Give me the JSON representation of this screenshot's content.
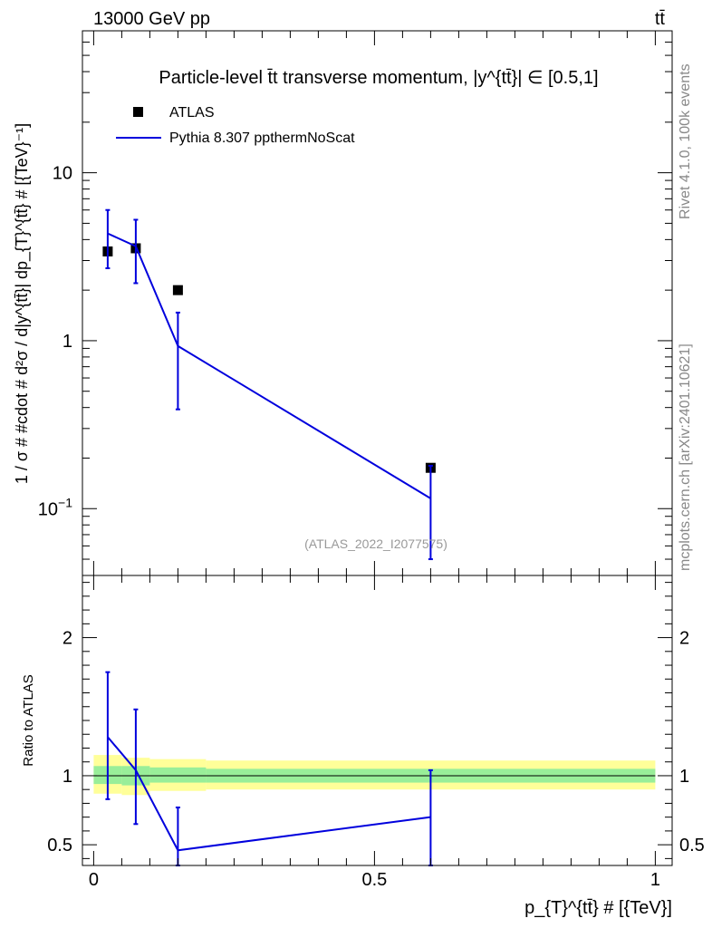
{
  "header": {
    "left": "13000 GeV pp",
    "right": "tt̄"
  },
  "side_labels": {
    "rivet": "Rivet 4.1.0,  100k events",
    "mcplots": "mcplots.cern.ch [arXiv:2401.10621]"
  },
  "chart_data": [
    {
      "type": "scatter",
      "panel": "main",
      "title": "Particle-level t̄t transverse momentum, |y^{tt̄}| ∈ [0.5,1]",
      "ylabel": "1 / σ # #cdot # d²σ / d|y^{tt̄}| dp_{T}^{tt̄} # [{TeV}⁻¹]",
      "yscale": "log",
      "ylim": [
        0.04,
        70
      ],
      "xlim": [
        -0.02,
        1.03
      ],
      "yticks": [
        {
          "value": 0.1,
          "base": "10",
          "exp": "−1"
        },
        {
          "value": 1,
          "label": "1"
        },
        {
          "value": 10,
          "label": "10"
        }
      ],
      "watermark": "(ATLAS_2022_I2077575)",
      "legend": {
        "position": "top-left",
        "entries": [
          {
            "label": "ATLAS",
            "style": "marker"
          },
          {
            "label": "Pythia 8.307 ppthermNoScat",
            "style": "line"
          }
        ]
      },
      "series": [
        {
          "name": "ATLAS",
          "color": "#000000",
          "x": [
            0.025,
            0.075,
            0.15,
            0.6
          ],
          "y": [
            3.4,
            3.55,
            2.0,
            0.175
          ]
        },
        {
          "name": "Pythia 8.307 ppthermNoScat",
          "color": "#0000dd",
          "x": [
            0.025,
            0.075,
            0.15,
            0.6
          ],
          "y": [
            4.35,
            3.65,
            0.93,
            0.115
          ],
          "yerr_low": [
            2.7,
            2.2,
            0.39,
            0.05
          ],
          "yerr_high": [
            6.0,
            5.25,
            1.47,
            0.18
          ]
        }
      ]
    },
    {
      "type": "line",
      "panel": "ratio",
      "ylabel": "Ratio to ATLAS",
      "xlabel": "p_{T}^{tt̄} # [{TeV}]",
      "ylim": [
        0.35,
        2.45
      ],
      "xlim": [
        -0.02,
        1.03
      ],
      "yticks": [
        0.5,
        1,
        2
      ],
      "xticks": [
        0,
        0.5,
        1
      ],
      "reference_line": 1.0,
      "bands": [
        {
          "name": "total uncertainty",
          "color": "#ffff99",
          "bins": [
            {
              "x0": 0.0,
              "x1": 0.05,
              "low": 0.87,
              "high": 1.15
            },
            {
              "x0": 0.05,
              "x1": 0.1,
              "low": 0.86,
              "high": 1.13
            },
            {
              "x0": 0.1,
              "x1": 0.2,
              "low": 0.89,
              "high": 1.12
            },
            {
              "x0": 0.2,
              "x1": 1.0,
              "low": 0.9,
              "high": 1.11
            }
          ]
        },
        {
          "name": "stat uncertainty",
          "color": "#99ee99",
          "bins": [
            {
              "x0": 0.0,
              "x1": 0.05,
              "low": 0.94,
              "high": 1.07
            },
            {
              "x0": 0.05,
              "x1": 0.1,
              "low": 0.93,
              "high": 1.07
            },
            {
              "x0": 0.1,
              "x1": 0.2,
              "low": 0.95,
              "high": 1.06
            },
            {
              "x0": 0.2,
              "x1": 1.0,
              "low": 0.95,
              "high": 1.05
            }
          ]
        }
      ],
      "series": [
        {
          "name": "Pythia 8.307 ppthermNoScat / ATLAS",
          "color": "#0000dd",
          "x": [
            0.025,
            0.075,
            0.15,
            0.6
          ],
          "y": [
            1.28,
            1.04,
            0.46,
            0.7
          ],
          "yerr_low": [
            0.83,
            0.65,
            0.35,
            0.35
          ],
          "yerr_high": [
            1.75,
            1.48,
            0.77,
            1.04
          ]
        }
      ]
    }
  ]
}
